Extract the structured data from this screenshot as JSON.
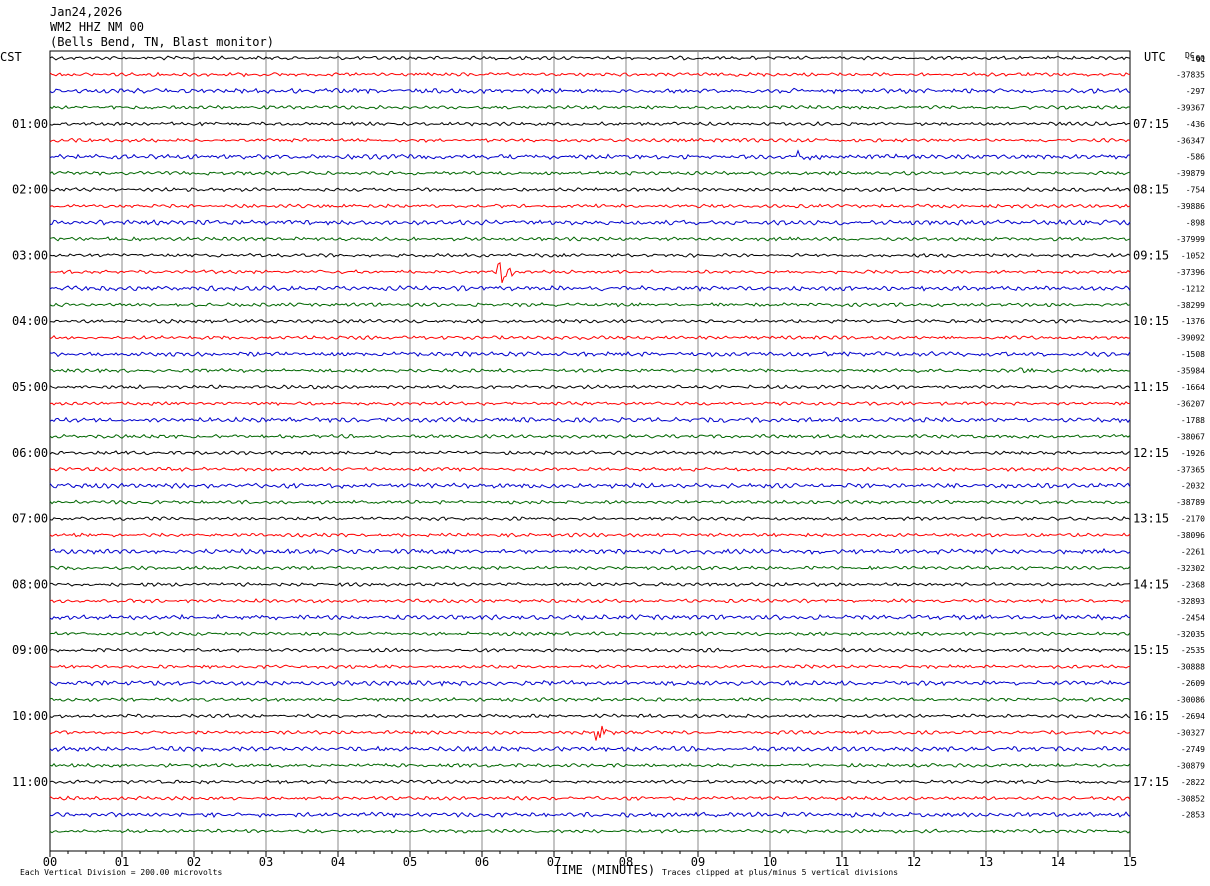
{
  "header": {
    "date": "Jan24,2026",
    "station": "WM2 HHZ NM 00",
    "location": "(Bells Bend, TN, Blast monitor)"
  },
  "left_timezone": "CST",
  "right_timezone": "UTC",
  "dc_label": "DC",
  "dc_sub": "91",
  "left_time_labels": [
    "01:00",
    "02:00",
    "03:00",
    "04:00",
    "05:00",
    "06:00",
    "07:00",
    "08:00",
    "09:00",
    "10:00",
    "11:00"
  ],
  "right_time_labels": [
    "07:15",
    "08:15",
    "09:15",
    "10:15",
    "11:15",
    "12:15",
    "13:15",
    "14:15",
    "15:15",
    "16:15",
    "17:15"
  ],
  "dc_values": [
    "-160",
    "-37835",
    "-297",
    "-39367",
    "-436",
    "-36347",
    "-586",
    "-39879",
    "-754",
    "-39886",
    "-898",
    "-37999",
    "-1052",
    "-37396",
    "-1212",
    "-38299",
    "-1376",
    "-39092",
    "-1508",
    "-35984",
    "-1664",
    "-36207",
    "-1788",
    "-38067",
    "-1926",
    "-37365",
    "-2032",
    "-38789",
    "-2170",
    "-38096",
    "-2261",
    "-32302",
    "-2368",
    "-32893",
    "-2454",
    "-32035",
    "-2535",
    "-30888",
    "-2609",
    "-30086",
    "-2694",
    "-30327",
    "-2749",
    "-30879",
    "-2822",
    "-30852",
    "-2853"
  ],
  "footer": {
    "vertical_division": "Each Vertical Division =  200.00 microvolts",
    "clip_note": "Traces clipped at plus/minus 5 vertical divisions"
  },
  "chart_data": {
    "type": "line",
    "title": "WM2 HHZ NM 00",
    "xlabel": "TIME (MINUTES)",
    "ylabel": "",
    "x_ticks": [
      "00",
      "01",
      "02",
      "03",
      "04",
      "05",
      "06",
      "07",
      "08",
      "09",
      "10",
      "11",
      "12",
      "13",
      "14",
      "15"
    ],
    "xlim": [
      0,
      15
    ],
    "grid": true,
    "trace_colors": [
      "#000000",
      "#ff0000",
      "#0000cc",
      "#006600"
    ],
    "trace_count": 48,
    "minutes_per_trace": 15,
    "events": [
      {
        "trace": 1,
        "minute": 2.55,
        "amplitude": 0.4
      },
      {
        "trace": 6,
        "minute": 10.4,
        "amplitude": 0.7
      },
      {
        "trace": 13,
        "minute": 6.25,
        "amplitude": 1.0
      },
      {
        "trace": 19,
        "minute": 13.45,
        "amplitude": 0.5
      },
      {
        "trace": 41,
        "minute": 7.6,
        "amplitude": 1.0
      }
    ]
  }
}
